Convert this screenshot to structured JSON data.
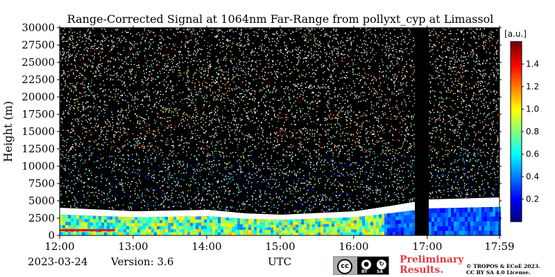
{
  "chart_data": {
    "type": "heatmap",
    "title": "Range-Corrected Signal at 1064nm Far-Range from pollyxt_cyp at Limassol",
    "ylabel": "Height (m)",
    "xlabel": "UTC",
    "x_ticks": [
      "12:00",
      "13:00",
      "14:00",
      "15:00",
      "16:00",
      "17:00",
      "17:59"
    ],
    "x_range": [
      "12:00",
      "17:59"
    ],
    "y_ticks": [
      0,
      2500,
      5000,
      7500,
      10000,
      12500,
      15000,
      17500,
      20000,
      22500,
      25000,
      27500,
      30000
    ],
    "ylim": [
      0,
      30000
    ],
    "colorbar": {
      "label": "[a.u.]",
      "range": [
        0,
        1.6
      ],
      "ticks": [
        0.2,
        0.4,
        0.6,
        0.8,
        1.0,
        1.2,
        1.4
      ],
      "colormap": "jet"
    },
    "data_gap": {
      "start": "16:50",
      "end": "17:01"
    },
    "cloud_layer_top_m": [
      {
        "time": "12:00",
        "height": 4000
      },
      {
        "time": "13:00",
        "height": 3500
      },
      {
        "time": "14:00",
        "height": 3700
      },
      {
        "time": "14:30",
        "height": 3200
      },
      {
        "time": "15:00",
        "height": 3000
      },
      {
        "time": "16:00",
        "height": 3500
      },
      {
        "time": "16:30",
        "height": 4300
      },
      {
        "time": "17:00",
        "height": 5200
      },
      {
        "time": "17:59",
        "height": 5500
      }
    ]
  },
  "footer": {
    "date": "2023-03-24",
    "version": "Version: 3.6",
    "time_label": "UTC",
    "preliminary_line1": "Preliminary",
    "preliminary_line2": "Results.",
    "copyright_line1": "© TROPOS & ECoE 2023.",
    "copyright_line2": "CC BY SA 4.0 License.",
    "license_badge": [
      "BY",
      "SA"
    ]
  }
}
